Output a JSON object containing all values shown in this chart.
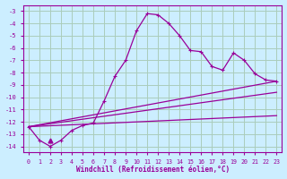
{
  "xlabel": "Windchill (Refroidissement éolien,°C)",
  "bg_color": "#cceeff",
  "grid_color": "#aaccbb",
  "line_color": "#990099",
  "xlim": [
    -0.5,
    23.5
  ],
  "ylim": [
    -14.5,
    -2.5
  ],
  "yticks": [
    -14,
    -13,
    -12,
    -11,
    -10,
    -9,
    -8,
    -7,
    -6,
    -5,
    -4,
    -3
  ],
  "xticks": [
    0,
    1,
    2,
    3,
    4,
    5,
    6,
    7,
    8,
    9,
    10,
    11,
    12,
    13,
    14,
    15,
    16,
    17,
    18,
    19,
    20,
    21,
    22,
    23
  ],
  "curve1_x": [
    0,
    1,
    2,
    3,
    4,
    5,
    6,
    7,
    8,
    9,
    10,
    11,
    12,
    13,
    14,
    15,
    16,
    17,
    18,
    19,
    20,
    21,
    22,
    23
  ],
  "curve1_y": [
    -12.4,
    -13.5,
    -14.0,
    -13.5,
    -12.7,
    -12.3,
    -12.1,
    -10.3,
    -8.3,
    -7.0,
    -4.6,
    -3.2,
    -3.3,
    -4.0,
    -5.0,
    -6.2,
    -6.3,
    -7.5,
    -7.8,
    -6.4,
    -7.0,
    -8.1,
    -8.6,
    -8.7
  ],
  "line1_x": [
    0,
    23
  ],
  "line1_y": [
    -12.4,
    -8.7
  ],
  "line2_x": [
    0,
    23
  ],
  "line2_y": [
    -12.4,
    -9.6
  ],
  "line3_x": [
    0,
    23
  ],
  "line3_y": [
    -12.4,
    -11.5
  ],
  "marker_triangle_x": [
    2
  ],
  "marker_triangle_y": [
    -13.5
  ]
}
